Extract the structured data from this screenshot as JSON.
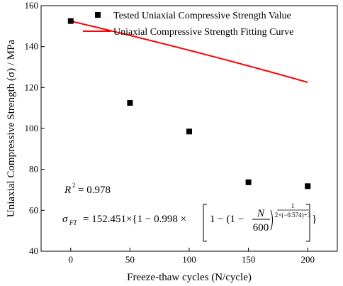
{
  "chart_data": {
    "type": "scatter",
    "title": "",
    "xlabel": "Freeze-thaw cycles (N/cycle)",
    "ylabel": "Uniaxial Compressive Strength (σ) / MPa",
    "xlim": [
      -25,
      225
    ],
    "ylim": [
      40,
      160
    ],
    "xticks": [
      0,
      50,
      100,
      150,
      200
    ],
    "yticks": [
      40,
      60,
      80,
      100,
      120,
      140,
      160
    ],
    "grid": false,
    "legend_position": "top-right",
    "series": [
      {
        "name": "Tested Uniaxial Compressive Strength Value",
        "kind": "scatter",
        "color": "#000000",
        "marker": "square",
        "x": [
          0,
          50,
          100,
          150,
          200
        ],
        "y": [
          152.5,
          112.5,
          98.5,
          73.7,
          71.8
        ]
      },
      {
        "name": "Uniaxial Compressive Strength Fitting Curve",
        "kind": "line",
        "color": "#ff0000",
        "model": {
          "A": 152.451,
          "B": 0.998,
          "C": 600,
          "k": -0.574
        }
      }
    ],
    "annotations": {
      "r2_label": "R",
      "r2_exp": "2",
      "r2_value": "= 0.978",
      "eq_lhs": "σ",
      "eq_lhs_sub": "FT",
      "eq_mid": "= 152.451×{1 − 0.998 ×",
      "eq_inner": "1 − (1 −",
      "eq_num": "N",
      "eq_den": "600",
      "eq_exp_num": "1",
      "eq_exp_den": "2×(−0.574)+3",
      "eq_close": "}"
    }
  }
}
